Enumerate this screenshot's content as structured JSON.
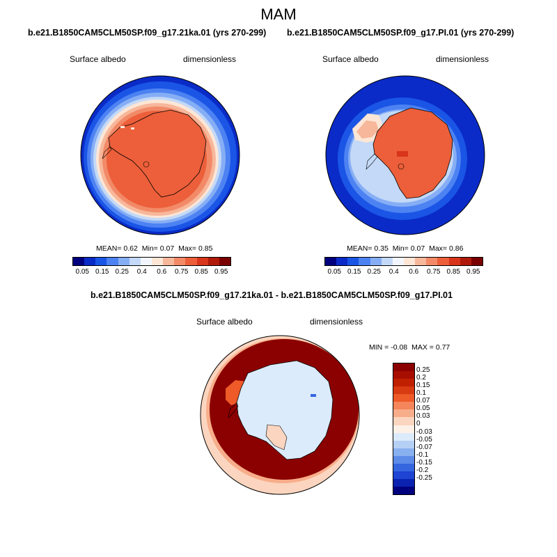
{
  "figure": {
    "season": "MAM",
    "panel1_title": "b.e21.B1850CAM5CLM50SP.f09_g17.21ka.01 (yrs 270-299)",
    "panel2_title": "b.e21.B1850CAM5CLM50SP.f09_g17.PI.01 (yrs 270-299)",
    "diff_title": "b.e21.B1850CAM5CLM50SP.f09_g17.21ka.01 - b.e21.B1850CAM5CLM50SP.f09_g17.PI.01"
  },
  "panels": [
    {
      "variable": "Surface albedo",
      "units": "dimensionless",
      "mean": "0.62",
      "min": "0.07",
      "max": "0.85"
    },
    {
      "variable": "Surface albedo",
      "units": "dimensionless",
      "mean": "0.35",
      "min": "0.07",
      "max": "0.86"
    },
    {
      "variable": "Surface albedo",
      "units": "dimensionless",
      "min": "-0.08",
      "max": "0.77"
    }
  ],
  "stats_labels": {
    "mean": "MEAN=",
    "min": "Min=",
    "max": "Max=",
    "min_upper": "MIN =",
    "max_upper": "MAX ="
  },
  "colorbar_abs": {
    "ticks": [
      "0.05",
      "0.15",
      "0.25",
      "0.4",
      "0.6",
      "0.75",
      "0.85",
      "0.95"
    ],
    "colors": [
      "#00007e",
      "#0a2bc8",
      "#1a55e6",
      "#4d82f2",
      "#86aef5",
      "#c3d9f7",
      "#f2f6fc",
      "#fde6d6",
      "#f7b79a",
      "#f28a68",
      "#ec5f3a",
      "#d8351c",
      "#b01a0a",
      "#7a0000"
    ]
  },
  "colorbar_diff": {
    "ticks": [
      "0.25",
      "0.2",
      "0.15",
      "0.1",
      "0.07",
      "0.05",
      "0.03",
      "0",
      "-0.03",
      "-0.05",
      "-0.07",
      "-0.1",
      "-0.15",
      "-0.2",
      "-0.25"
    ],
    "colors": [
      "#8b0000",
      "#a80e00",
      "#c02000",
      "#d83a12",
      "#ee5a28",
      "#f5855a",
      "#f8ad8a",
      "#fbd5bf",
      "#fdf1e7",
      "#dcebfb",
      "#b6d0f5",
      "#89b0ef",
      "#5d8be8",
      "#3566e0",
      "#1e44d4",
      "#0b22b0",
      "#00007e"
    ]
  }
}
